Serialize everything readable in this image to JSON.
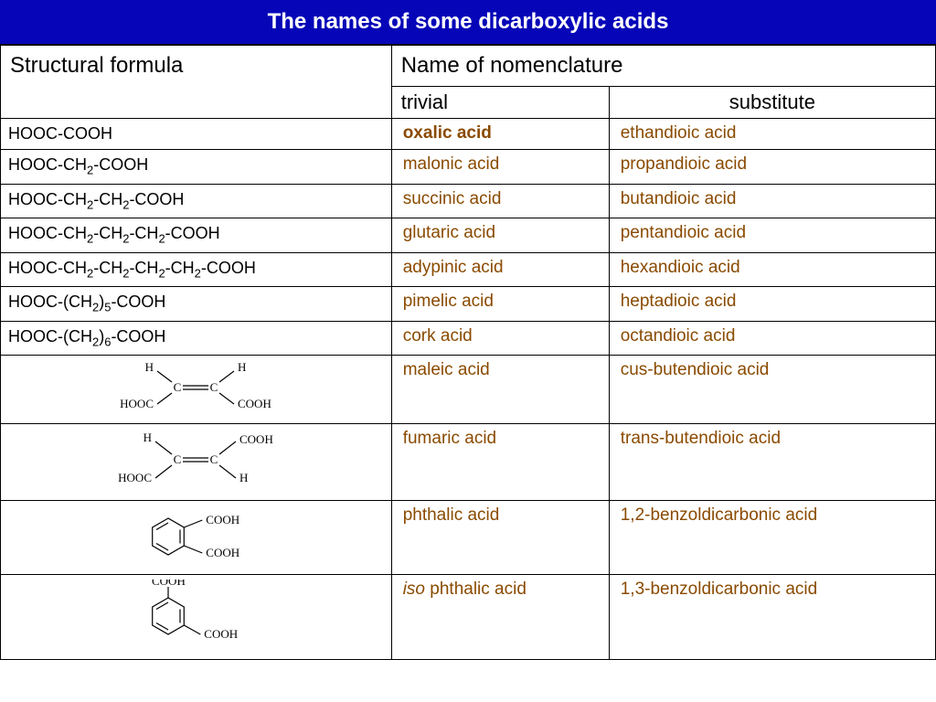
{
  "title": "The names of some dicarboxylic acids",
  "colors": {
    "title_bg": "#0606b8",
    "title_text": "#ffffff",
    "border": "#000000",
    "name_text": "#8a4a00",
    "formula_text": "#000000"
  },
  "font_sizes": {
    "title": 24,
    "header": 24,
    "subheader": 22,
    "body": 19,
    "formula": 18
  },
  "columns": [
    "Structural formula",
    "Name of nomenclature"
  ],
  "subcolumns": [
    "trivial",
    "substitute"
  ],
  "rows": [
    {
      "formula_type": "text",
      "formula": "HOOC-COOH",
      "trivial_prefix": "",
      "trivial": "oxalic acid",
      "trivial_bold": true,
      "substitute": "ethandioic acid"
    },
    {
      "formula_type": "text",
      "formula": "HOOC-CH2-COOH",
      "trivial_prefix": "",
      "trivial": "malonic acid",
      "trivial_bold": false,
      "substitute": "propandioic acid"
    },
    {
      "formula_type": "text",
      "formula": "HOOC-CH2-CH2-COOH",
      "trivial_prefix": "",
      "trivial": "succinic acid",
      "trivial_bold": false,
      "substitute": "butandioic acid"
    },
    {
      "formula_type": "text",
      "formula": "HOOC-CH2-CH2-CH2-COOH",
      "trivial_prefix": "",
      "trivial": "glutaric acid",
      "trivial_bold": false,
      "substitute": "pentandioic acid"
    },
    {
      "formula_type": "text",
      "formula": "HOOC-CH2-CH2-CH2-CH2-COOH",
      "trivial_prefix": "",
      "trivial": "adypinic acid",
      "trivial_bold": false,
      "substitute": "hexandioic acid"
    },
    {
      "formula_type": "text",
      "formula": "HOOC-(CH2)5-COOH",
      "trivial_prefix": "",
      "trivial": "pimelic acid",
      "trivial_bold": false,
      "substitute": "heptadioic acid"
    },
    {
      "formula_type": "text",
      "formula": "HOOC-(CH2)6-COOH",
      "trivial_prefix": "",
      "trivial": "cork acid",
      "trivial_bold": false,
      "substitute": "octandioic acid"
    },
    {
      "formula_type": "maleic",
      "formula": "",
      "trivial_prefix": "",
      "trivial": "maleic acid",
      "trivial_bold": false,
      "substitute": "cus-butendioic acid"
    },
    {
      "formula_type": "fumaric",
      "formula": "",
      "trivial_prefix": "",
      "trivial": "fumaric acid",
      "trivial_bold": false,
      "substitute": "trans-butendioic acid"
    },
    {
      "formula_type": "phthalic",
      "formula": "",
      "trivial_prefix": "",
      "trivial": "phthalic acid",
      "trivial_bold": false,
      "substitute": "1,2-benzoldicarbonic acid"
    },
    {
      "formula_type": "isophthalic",
      "formula": "",
      "trivial_prefix": "iso",
      "trivial": " phthalic acid",
      "trivial_bold": false,
      "substitute": "1,3-benzoldicarbonic acid"
    }
  ],
  "structures": {
    "maleic": {
      "atoms": {
        "C1": "C",
        "C2": "C",
        "H1": "H",
        "H2": "H",
        "G1": "HOOC",
        "G2": "COOH"
      },
      "double_bond": true
    },
    "fumaric": {
      "atoms": {
        "C1": "C",
        "C2": "C",
        "H1": "H",
        "H2": "H",
        "G1": "HOOC",
        "G2": "COOH"
      },
      "double_bond": true
    },
    "phthalic": {
      "groups": [
        "COOH",
        "COOH"
      ],
      "positions": "1,2"
    },
    "isophthalic": {
      "groups": [
        "COOH",
        "COOH"
      ],
      "positions": "1,3"
    }
  }
}
